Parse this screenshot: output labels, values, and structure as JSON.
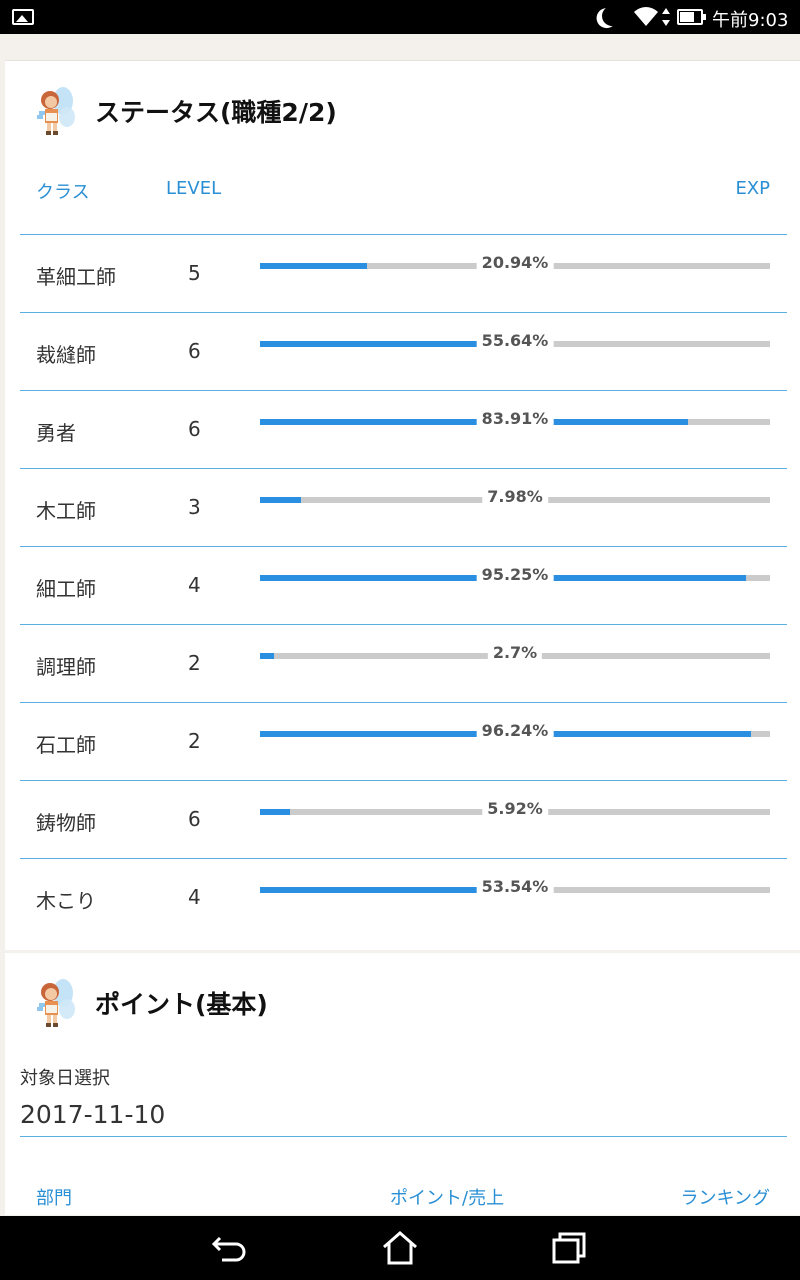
{
  "status_bar": {
    "time": "午前9:03",
    "icons": [
      "gallery-icon",
      "moon-icon",
      "wifi-icon",
      "battery-icon"
    ]
  },
  "status_card": {
    "title": "ステータス(職種2/2)",
    "columns": {
      "class": "クラス",
      "level": "LEVEL",
      "exp": "EXP"
    },
    "rows": [
      {
        "class": "革細工師",
        "level": "5",
        "exp": "20.94%",
        "fraction": 0.2094
      },
      {
        "class": "裁縫師",
        "level": "6",
        "exp": "55.64%",
        "fraction": 0.5564
      },
      {
        "class": "勇者",
        "level": "6",
        "exp": "83.91%",
        "fraction": 0.8391
      },
      {
        "class": "木工師",
        "level": "3",
        "exp": "7.98%",
        "fraction": 0.0798
      },
      {
        "class": "細工師",
        "level": "4",
        "exp": "95.25%",
        "fraction": 0.9525
      },
      {
        "class": "調理師",
        "level": "2",
        "exp": "2.7%",
        "fraction": 0.027
      },
      {
        "class": "石工師",
        "level": "2",
        "exp": "96.24%",
        "fraction": 0.9624
      },
      {
        "class": "鋳物師",
        "level": "6",
        "exp": "5.92%",
        "fraction": 0.0592
      },
      {
        "class": "木こり",
        "level": "4",
        "exp": "53.54%",
        "fraction": 0.5354
      }
    ],
    "colors": {
      "bar_fill": "#2a8fe0",
      "bar_track": "#cbcbcb",
      "accent": "#2a8fd4"
    }
  },
  "points_card": {
    "title": "ポイント(基本)",
    "date_label": "対象日選択",
    "date_value": "2017-11-10",
    "columns": {
      "dept": "部門",
      "points": "ポイント/売上",
      "ranking": "ランキング"
    }
  },
  "nav_bar": {
    "icons": [
      "back-icon",
      "home-icon",
      "recent-apps-icon"
    ]
  }
}
